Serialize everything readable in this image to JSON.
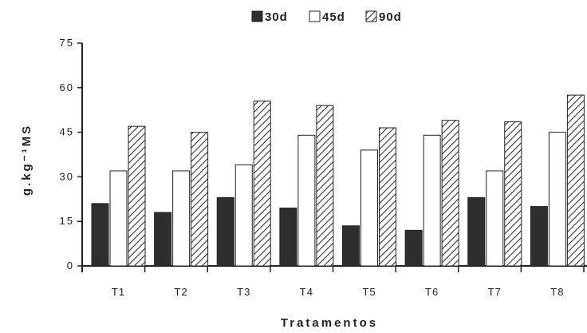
{
  "chart_data": {
    "type": "bar",
    "title": "",
    "xlabel": "Tratamentos",
    "ylabel": "g.kg⁻¹MS",
    "ylim": [
      0,
      75
    ],
    "yticks": [
      0,
      15,
      30,
      45,
      60,
      75
    ],
    "categories": [
      "T1",
      "T2",
      "T3",
      "T4",
      "T5",
      "T6",
      "T7",
      "T8"
    ],
    "series": [
      {
        "name": "30d",
        "fill": "dark",
        "values": [
          21,
          18,
          23,
          19.5,
          13.5,
          12,
          23,
          20
        ]
      },
      {
        "name": "45d",
        "fill": "white",
        "values": [
          32,
          32,
          34,
          44,
          39,
          44,
          32,
          45
        ]
      },
      {
        "name": "90d",
        "fill": "hatched",
        "values": [
          47,
          45,
          55.5,
          54,
          46.5,
          49,
          48.5,
          57.5
        ]
      }
    ],
    "legend_position": "top-center",
    "grid": false
  },
  "colors": {
    "dark": "#2e2e2e",
    "white": "#ffffff",
    "hatch": "#333333",
    "axis": "#222222"
  }
}
